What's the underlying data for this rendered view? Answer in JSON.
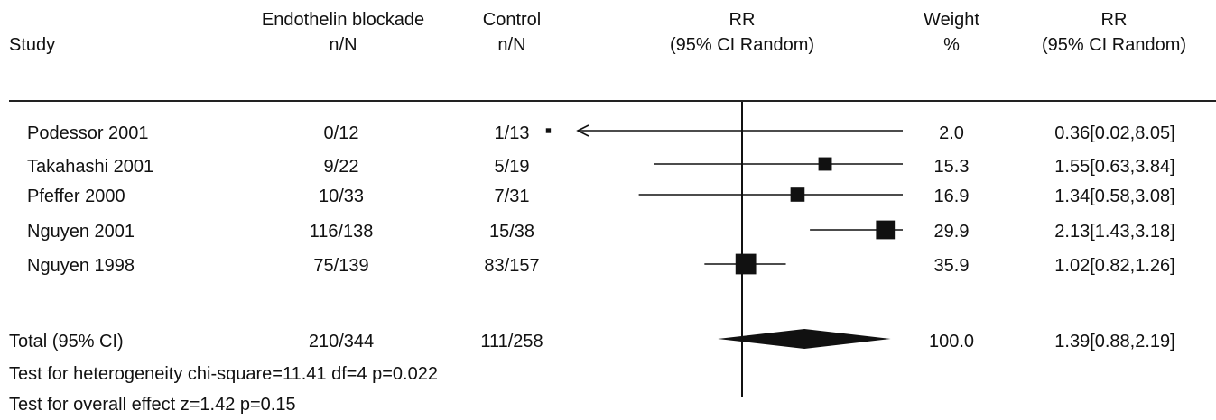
{
  "header": {
    "study": "Study",
    "treat_line1": "Endothelin blockade",
    "treat_line2": "n/N",
    "control_line1": "Control",
    "control_line2": "n/N",
    "rr_line1": "RR",
    "rr_line2": "(95% CI Random)",
    "weight_line1": "Weight",
    "weight_line2": "%",
    "rrci_line1": "RR",
    "rrci_line2": "(95% CI Random)"
  },
  "rows": [
    {
      "study": "Podessor 2001",
      "treat": "0/12",
      "control": "1/13",
      "weight": "2.0",
      "rr_text": "0.36[0.02,8.05]"
    },
    {
      "study": "Takahashi 2001",
      "treat": "9/22",
      "control": "5/19",
      "weight": "15.3",
      "rr_text": "1.55[0.63,3.84]"
    },
    {
      "study": "Pfeffer 2000",
      "treat": "10/33",
      "control": "7/31",
      "weight": "16.9",
      "rr_text": "1.34[0.58,3.08]"
    },
    {
      "study": "Nguyen 2001",
      "treat": "116/138",
      "control": "15/38",
      "weight": "29.9",
      "rr_text": "2.13[1.43,3.18]"
    },
    {
      "study": "Nguyen 1998",
      "treat": "75/139",
      "control": "83/157",
      "weight": "35.9",
      "rr_text": "1.02[0.82,1.26]"
    }
  ],
  "total": {
    "label": "Total (95% CI)",
    "treat": "210/344",
    "control": "111/258",
    "weight": "100.0",
    "rr_text": "1.39[0.88,2.19]"
  },
  "footer": {
    "heterogeneity": "Test for heterogeneity chi-square=11.41 df=4 p=0.022",
    "overall": "Test for overall effect z=1.42 p=0.15"
  },
  "chart_data": {
    "type": "forest",
    "measure": "RR",
    "scale": "log",
    "reference_line": 1,
    "studies": [
      {
        "name": "Podessor 2001",
        "rr": 0.36,
        "lo": 0.02,
        "hi": 8.05,
        "weight": 2.0,
        "clipped_low": true,
        "clipped_high": true
      },
      {
        "name": "Takahashi 2001",
        "rr": 1.55,
        "lo": 0.63,
        "hi": 3.84,
        "weight": 15.3
      },
      {
        "name": "Pfeffer 2000",
        "rr": 1.34,
        "lo": 0.58,
        "hi": 3.08,
        "weight": 16.9
      },
      {
        "name": "Nguyen 2001",
        "rr": 2.13,
        "lo": 1.43,
        "hi": 3.18,
        "weight": 29.9
      },
      {
        "name": "Nguyen 1998",
        "rr": 1.02,
        "lo": 0.82,
        "hi": 1.26,
        "weight": 35.9
      }
    ],
    "pooled": {
      "rr": 1.39,
      "lo": 0.88,
      "hi": 2.19,
      "weight": 100.0
    }
  }
}
